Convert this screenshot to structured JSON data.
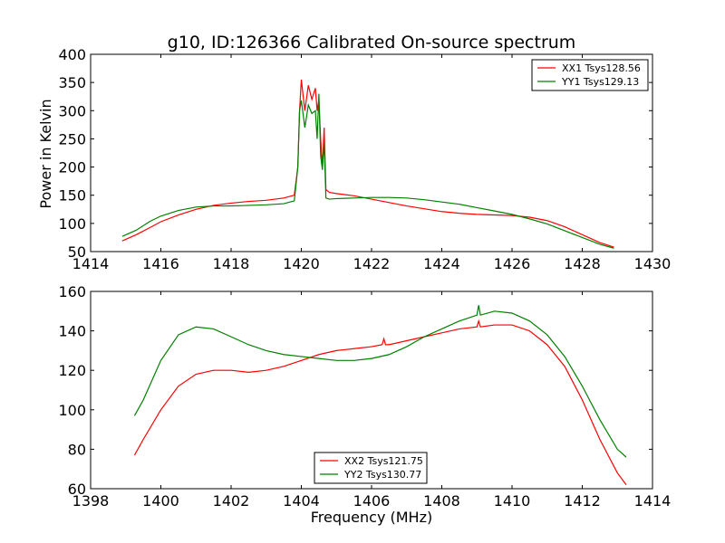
{
  "chart_data": [
    {
      "type": "line",
      "title": "g10, ID:126366 Calibrated On-source spectrum",
      "xlabel": "",
      "ylabel": "Power in Kelvin",
      "xlim": [
        1414,
        1430
      ],
      "ylim": [
        50,
        400
      ],
      "xticks": [
        1414,
        1416,
        1418,
        1420,
        1422,
        1424,
        1426,
        1428,
        1430
      ],
      "yticks": [
        50,
        100,
        150,
        200,
        250,
        300,
        350,
        400
      ],
      "legend_position": "top-right",
      "series": [
        {
          "name": "XX1 Tsys128.56",
          "color": "#ff0000",
          "points": [
            [
              1414.9,
              69
            ],
            [
              1415.3,
              80
            ],
            [
              1415.7,
              93
            ],
            [
              1416.0,
              103
            ],
            [
              1416.5,
              115
            ],
            [
              1417.0,
              125
            ],
            [
              1417.5,
              132
            ],
            [
              1418.0,
              136
            ],
            [
              1418.5,
              139
            ],
            [
              1419.0,
              141
            ],
            [
              1419.5,
              145
            ],
            [
              1419.8,
              150
            ],
            [
              1419.9,
              200
            ],
            [
              1419.95,
              300
            ],
            [
              1420.0,
              355
            ],
            [
              1420.1,
              300
            ],
            [
              1420.2,
              345
            ],
            [
              1420.3,
              320
            ],
            [
              1420.4,
              340
            ],
            [
              1420.45,
              300
            ],
            [
              1420.5,
              320
            ],
            [
              1420.55,
              250
            ],
            [
              1420.6,
              200
            ],
            [
              1420.65,
              270
            ],
            [
              1420.7,
              160
            ],
            [
              1420.8,
              155
            ],
            [
              1421.0,
              153
            ],
            [
              1421.5,
              149
            ],
            [
              1422.0,
              143
            ],
            [
              1422.5,
              137
            ],
            [
              1423.0,
              131
            ],
            [
              1423.5,
              126
            ],
            [
              1424.0,
              121
            ],
            [
              1424.5,
              118
            ],
            [
              1425.0,
              116
            ],
            [
              1425.5,
              115
            ],
            [
              1426.0,
              114
            ],
            [
              1426.5,
              111
            ],
            [
              1427.0,
              105
            ],
            [
              1427.5,
              94
            ],
            [
              1428.0,
              80
            ],
            [
              1428.5,
              66
            ],
            [
              1428.9,
              58
            ]
          ]
        },
        {
          "name": "YY1 Tsys129.13",
          "color": "#008000",
          "points": [
            [
              1414.9,
              77
            ],
            [
              1415.3,
              88
            ],
            [
              1415.7,
              104
            ],
            [
              1416.0,
              113
            ],
            [
              1416.5,
              123
            ],
            [
              1417.0,
              129
            ],
            [
              1417.5,
              131
            ],
            [
              1418.0,
              131
            ],
            [
              1418.5,
              132
            ],
            [
              1419.0,
              133
            ],
            [
              1419.5,
              135
            ],
            [
              1419.8,
              140
            ],
            [
              1419.9,
              200
            ],
            [
              1419.95,
              300
            ],
            [
              1420.0,
              318
            ],
            [
              1420.1,
              270
            ],
            [
              1420.2,
              310
            ],
            [
              1420.3,
              295
            ],
            [
              1420.4,
              300
            ],
            [
              1420.45,
              250
            ],
            [
              1420.5,
              330
            ],
            [
              1420.55,
              220
            ],
            [
              1420.6,
              195
            ],
            [
              1420.65,
              245
            ],
            [
              1420.7,
              145
            ],
            [
              1420.8,
              143
            ],
            [
              1421.0,
              144
            ],
            [
              1421.5,
              145
            ],
            [
              1422.0,
              146
            ],
            [
              1422.5,
              146
            ],
            [
              1423.0,
              145
            ],
            [
              1423.5,
              142
            ],
            [
              1424.0,
              138
            ],
            [
              1424.5,
              134
            ],
            [
              1425.0,
              128
            ],
            [
              1425.5,
              122
            ],
            [
              1426.0,
              116
            ],
            [
              1426.5,
              108
            ],
            [
              1427.0,
              99
            ],
            [
              1427.5,
              87
            ],
            [
              1428.0,
              75
            ],
            [
              1428.5,
              63
            ],
            [
              1428.9,
              56
            ]
          ]
        }
      ]
    },
    {
      "type": "line",
      "title": "",
      "xlabel": "Frequency (MHz)",
      "ylabel": "",
      "xlim": [
        1398,
        1414
      ],
      "ylim": [
        60,
        160
      ],
      "xticks": [
        1398,
        1400,
        1402,
        1404,
        1406,
        1408,
        1410,
        1412,
        1414
      ],
      "yticks": [
        60,
        80,
        100,
        120,
        140,
        160
      ],
      "legend_position": "bottom-center",
      "series": [
        {
          "name": "XX2 Tsys121.75",
          "color": "#ff0000",
          "points": [
            [
              1399.25,
              77
            ],
            [
              1399.5,
              85
            ],
            [
              1400.0,
              100
            ],
            [
              1400.5,
              112
            ],
            [
              1401.0,
              118
            ],
            [
              1401.5,
              120
            ],
            [
              1402.0,
              120
            ],
            [
              1402.5,
              119
            ],
            [
              1403.0,
              120
            ],
            [
              1403.5,
              122
            ],
            [
              1404.0,
              125
            ],
            [
              1404.5,
              128
            ],
            [
              1405.0,
              130
            ],
            [
              1405.5,
              131
            ],
            [
              1406.0,
              132
            ],
            [
              1406.3,
              133
            ],
            [
              1406.35,
              136
            ],
            [
              1406.4,
              133
            ],
            [
              1406.5,
              133
            ],
            [
              1407.0,
              135
            ],
            [
              1407.5,
              137
            ],
            [
              1408.0,
              139
            ],
            [
              1408.5,
              141
            ],
            [
              1409.0,
              142
            ],
            [
              1409.05,
              145
            ],
            [
              1409.1,
              142
            ],
            [
              1409.5,
              143
            ],
            [
              1410.0,
              143
            ],
            [
              1410.5,
              140
            ],
            [
              1411.0,
              133
            ],
            [
              1411.5,
              122
            ],
            [
              1412.0,
              105
            ],
            [
              1412.5,
              85
            ],
            [
              1413.0,
              68
            ],
            [
              1413.25,
              62
            ]
          ]
        },
        {
          "name": "YY2 Tsys130.77",
          "color": "#008000",
          "points": [
            [
              1399.25,
              97
            ],
            [
              1399.5,
              105
            ],
            [
              1400.0,
              125
            ],
            [
              1400.5,
              138
            ],
            [
              1401.0,
              142
            ],
            [
              1401.5,
              141
            ],
            [
              1402.0,
              137
            ],
            [
              1402.5,
              133
            ],
            [
              1403.0,
              130
            ],
            [
              1403.5,
              128
            ],
            [
              1404.0,
              127
            ],
            [
              1404.5,
              126
            ],
            [
              1405.0,
              125
            ],
            [
              1405.5,
              125
            ],
            [
              1406.0,
              126
            ],
            [
              1406.5,
              128
            ],
            [
              1407.0,
              132
            ],
            [
              1407.5,
              137
            ],
            [
              1408.0,
              141
            ],
            [
              1408.5,
              145
            ],
            [
              1409.0,
              148
            ],
            [
              1409.05,
              153
            ],
            [
              1409.1,
              148
            ],
            [
              1409.5,
              150
            ],
            [
              1410.0,
              149
            ],
            [
              1410.5,
              145
            ],
            [
              1411.0,
              138
            ],
            [
              1411.5,
              127
            ],
            [
              1412.0,
              112
            ],
            [
              1412.5,
              95
            ],
            [
              1413.0,
              80
            ],
            [
              1413.25,
              76
            ]
          ]
        }
      ]
    }
  ]
}
